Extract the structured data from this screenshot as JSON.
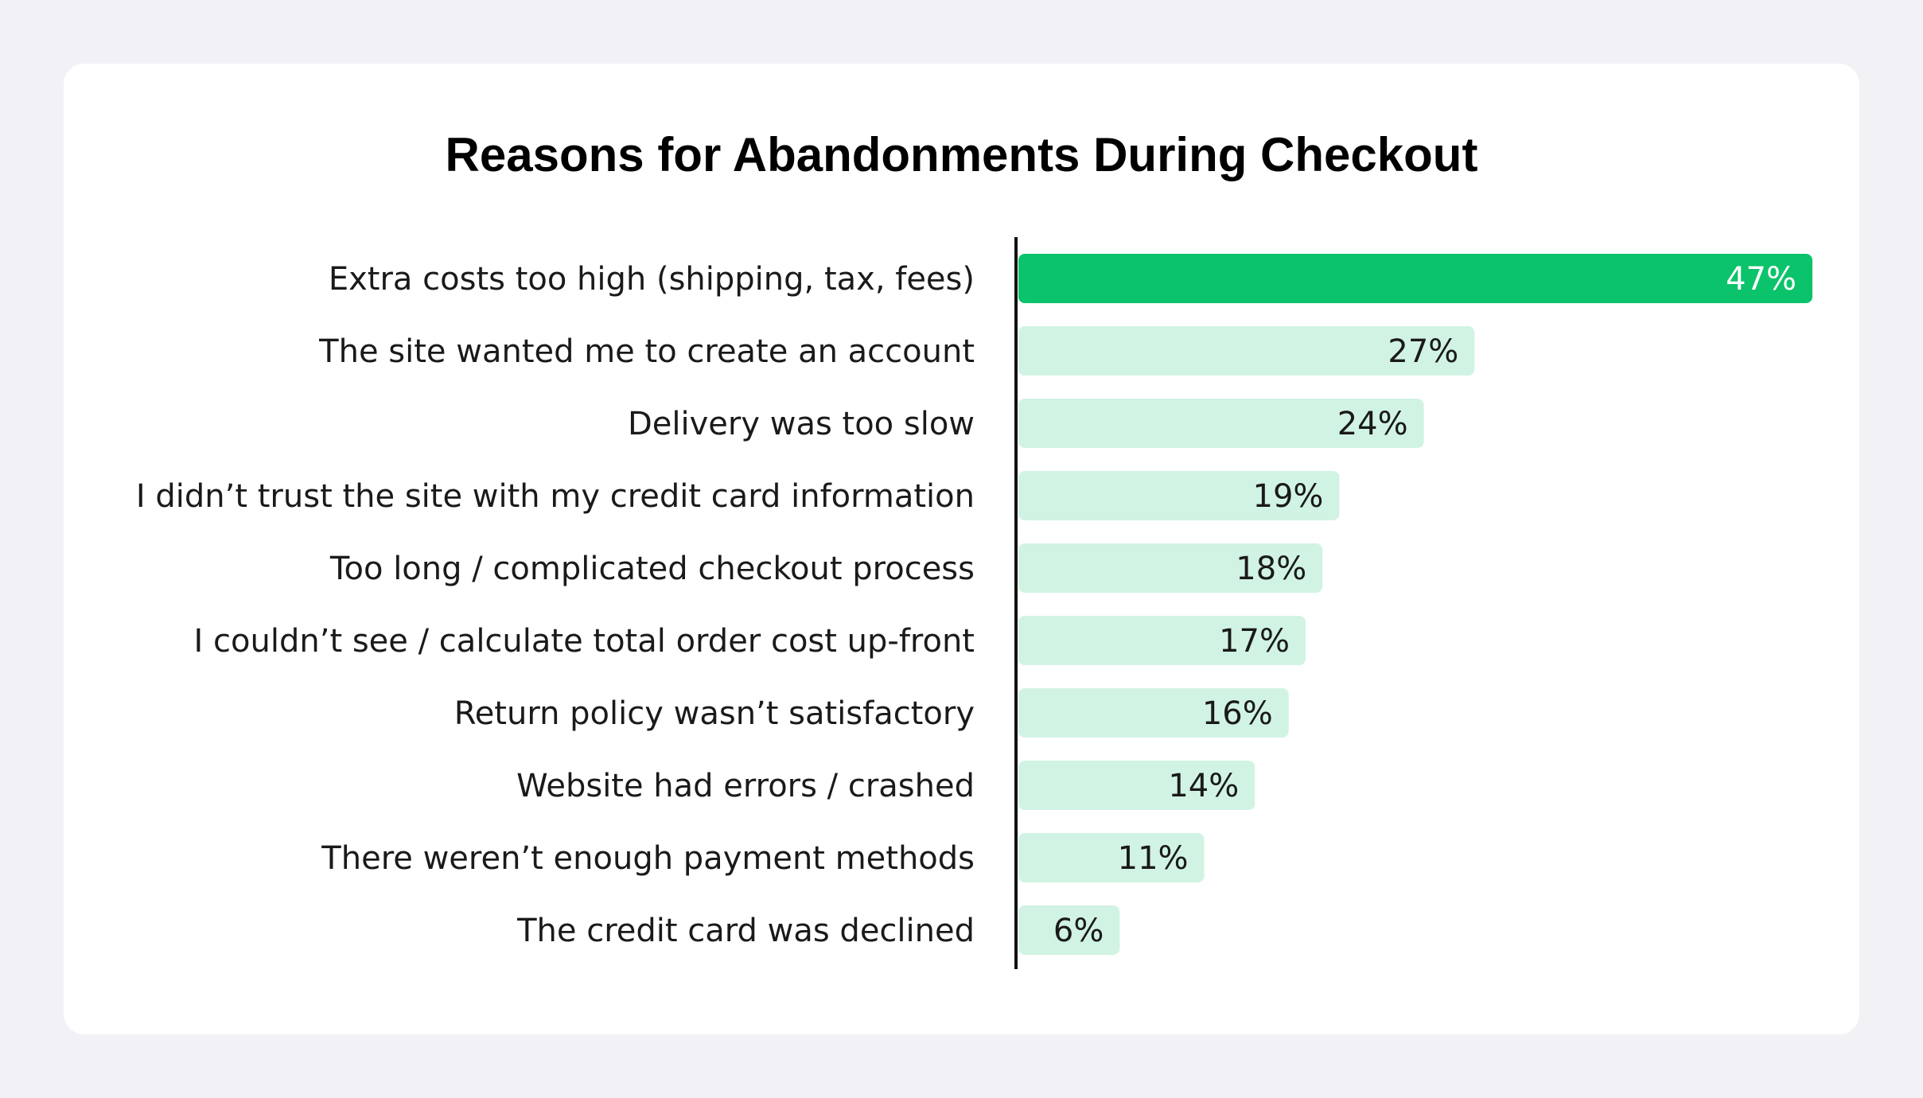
{
  "chart_data": {
    "type": "bar",
    "orientation": "horizontal",
    "title": "Reasons for Abandonments During Checkout",
    "categories": [
      "Extra costs too high (shipping, tax, fees)",
      "The site wanted me to create an account",
      "Delivery was too slow",
      "I didn’t trust the site with my credit card information",
      "Too long / complicated checkout process",
      "I couldn’t see / calculate total order cost up-front",
      "Return policy wasn’t satisfactory",
      "Website had errors / crashed",
      "There weren’t enough payment methods",
      "The credit card was declined"
    ],
    "values": [
      47,
      27,
      24,
      19,
      18,
      17,
      16,
      14,
      11,
      6
    ],
    "value_labels": [
      "47%",
      "27%",
      "24%",
      "19%",
      "18%",
      "17%",
      "16%",
      "14%",
      "11%",
      "6%"
    ],
    "unit": "%",
    "xlim": [
      0,
      47
    ],
    "grid": false,
    "legend": "none",
    "highlight_index": 0,
    "colors": {
      "highlight_bar": "#0bc36b",
      "bar": "#d1f3e3",
      "highlight_text": "#ffffff",
      "text": "#1a1a1a",
      "axis": "#111111",
      "card": "#ffffff",
      "background": "#f2f2f6"
    }
  }
}
